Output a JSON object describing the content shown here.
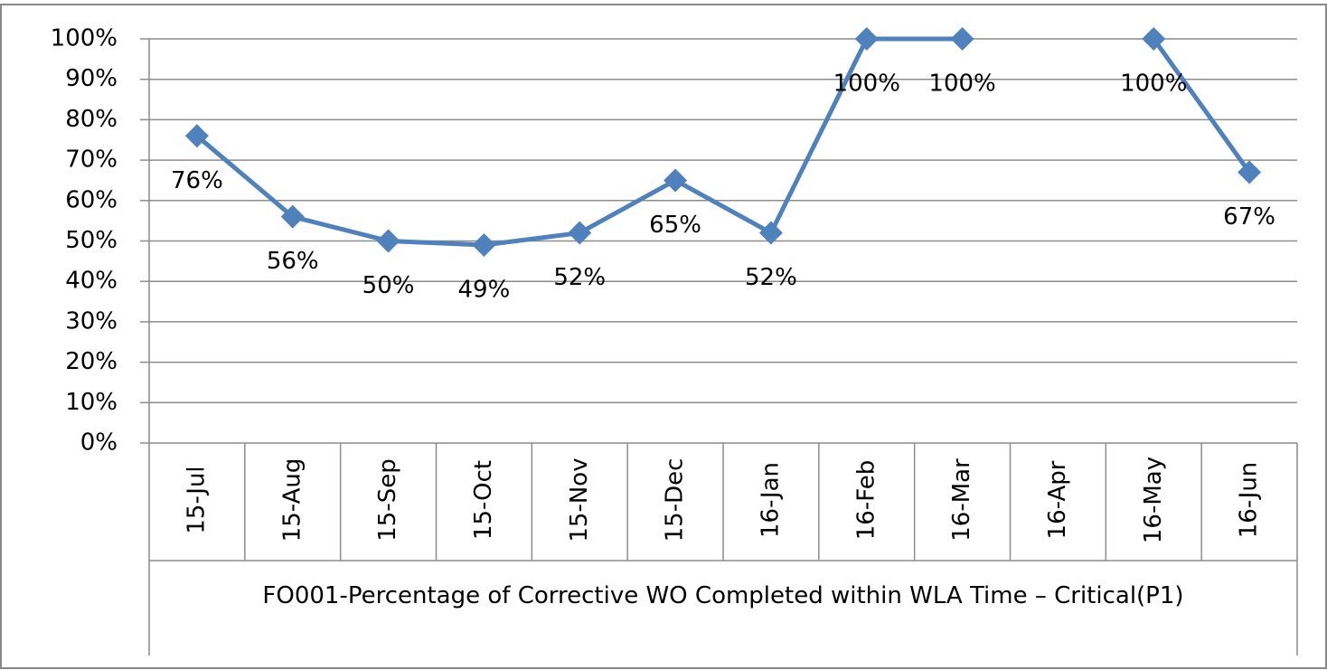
{
  "chart_data": {
    "type": "line",
    "x_label": "FO001-Percentage of Corrective WO Completed within WLA Time – Critical(P1)",
    "categories": [
      "15-Jul",
      "15-Aug",
      "15-Sep",
      "15-Oct",
      "15-Nov",
      "15-Dec",
      "16-Jan",
      "16-Feb",
      "16-Mar",
      "16-Apr",
      "16-May",
      "16-Jun"
    ],
    "values": [
      76,
      56,
      50,
      49,
      52,
      65,
      52,
      100,
      100,
      null,
      100,
      67
    ],
    "value_labels": [
      "76%",
      "56%",
      "50%",
      "49%",
      "52%",
      "65%",
      "52%",
      "100%",
      "100%",
      null,
      "100%",
      "67%"
    ],
    "color": "#4f81bd",
    "ylim": [
      0,
      100
    ],
    "yticks": [
      {
        "value": 0,
        "label": "0%"
      },
      {
        "value": 10,
        "label": "10%"
      },
      {
        "value": 20,
        "label": "20%"
      },
      {
        "value": 30,
        "label": "30%"
      },
      {
        "value": 40,
        "label": "40%"
      },
      {
        "value": 50,
        "label": "50%"
      },
      {
        "value": 60,
        "label": "60%"
      },
      {
        "value": 70,
        "label": "70%"
      },
      {
        "value": 80,
        "label": "80%"
      },
      {
        "value": 90,
        "label": "90%"
      },
      {
        "value": 100,
        "label": "100%"
      }
    ],
    "grid": true
  }
}
